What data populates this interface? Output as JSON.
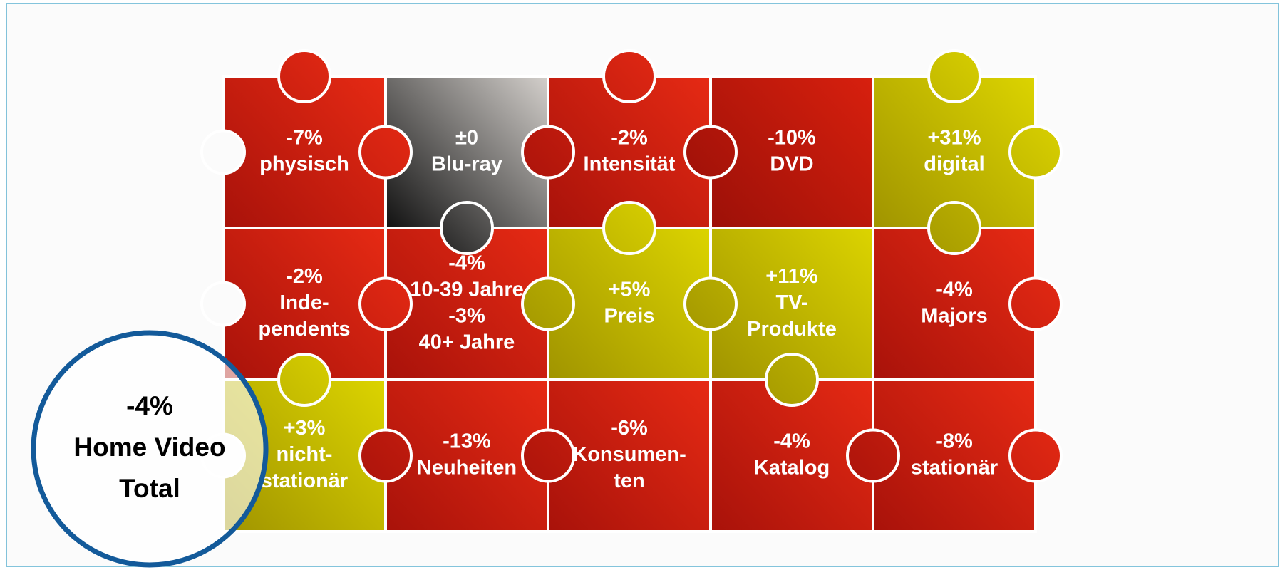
{
  "pieces": [
    {
      "lines": [
        "-7%",
        "physisch"
      ]
    },
    {
      "lines": [
        "±0",
        "Blu-ray"
      ]
    },
    {
      "lines": [
        "-2%",
        "Intensität"
      ]
    },
    {
      "lines": [
        "-10%",
        "DVD"
      ]
    },
    {
      "lines": [
        "+31%",
        "digital"
      ]
    },
    {
      "lines": [
        "-2%",
        "Inde-",
        "pendents"
      ]
    },
    {
      "lines": [
        "-4%",
        "10-39 Jahre",
        "-3%",
        "40+ Jahre"
      ]
    },
    {
      "lines": [
        "+5%",
        "Preis"
      ]
    },
    {
      "lines": [
        "+11%",
        "TV-",
        "Produkte"
      ]
    },
    {
      "lines": [
        "-4%",
        "Majors"
      ]
    },
    {
      "lines": [
        "+3%",
        "nicht-",
        "stationär"
      ]
    },
    {
      "lines": [
        "-13%",
        "Neuheiten"
      ]
    },
    {
      "lines": [
        "-6%",
        "Konsumen-",
        "ten"
      ]
    },
    {
      "lines": [
        "-4%",
        "Katalog"
      ]
    },
    {
      "lines": [
        "-8%",
        "stationär"
      ]
    }
  ],
  "total": {
    "lines": [
      "-4%",
      "Home Video",
      "Total"
    ]
  }
}
